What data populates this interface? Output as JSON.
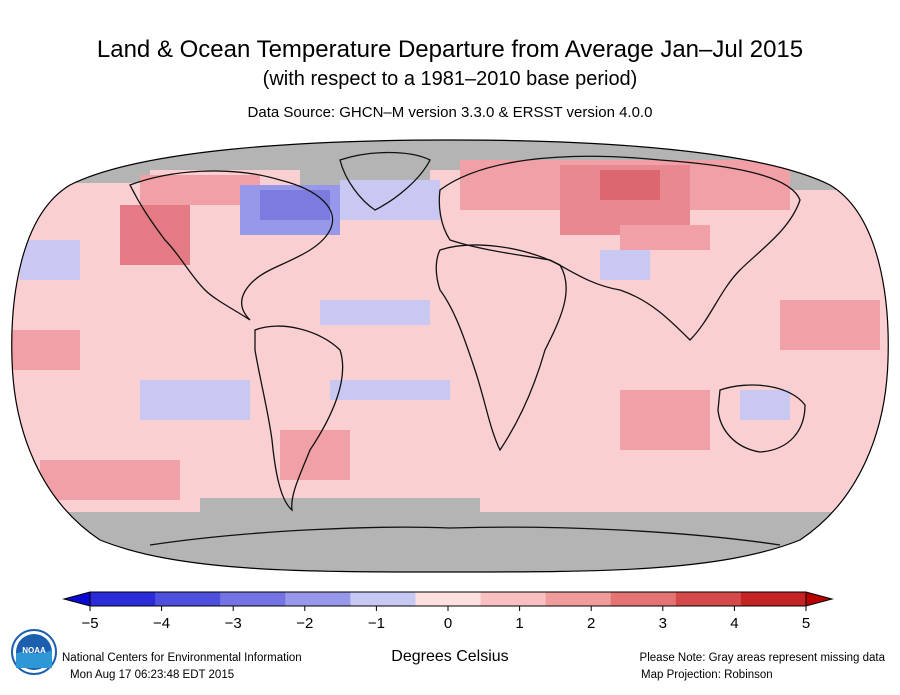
{
  "title": "Land & Ocean Temperature Departure from Average Jan–Jul 2015",
  "subtitle": "(with respect to a 1981–2010 base period)",
  "source": "Data Source: GHCN–M version 3.3.0 & ERSST version 4.0.0",
  "legend": {
    "label": "Degrees Celsius",
    "ticks": [
      "−5",
      "−4",
      "−3",
      "−2",
      "−1",
      "0",
      "1",
      "2",
      "3",
      "4",
      "5"
    ],
    "colors": [
      "#0a0ad2",
      "#2b2bd8",
      "#4f4fde",
      "#7373e3",
      "#9898ea",
      "#c8c8f4",
      "#fde0e0",
      "#f8c0c0",
      "#f09c9c",
      "#e47474",
      "#d44a4a",
      "#c42424",
      "#b80000"
    ]
  },
  "footer": {
    "org": "National Centers for Environmental Information",
    "timestamp": "Mon Aug 17 06:23:48 EDT 2015",
    "note": "Please Note: Gray areas represent missing data",
    "projection": "Map Projection: Robinson"
  },
  "logo": {
    "icon": "noaa-logo",
    "text": "NOAA"
  },
  "map_colors": {
    "missing": "#b4b4b4",
    "baseline_warm": "#f9cfd2",
    "warm": "#f0a0a6",
    "hot": "#dd6770",
    "cool": "#c8c8f2",
    "cold": "#7c7ce0",
    "land_outline": "#111111"
  }
}
